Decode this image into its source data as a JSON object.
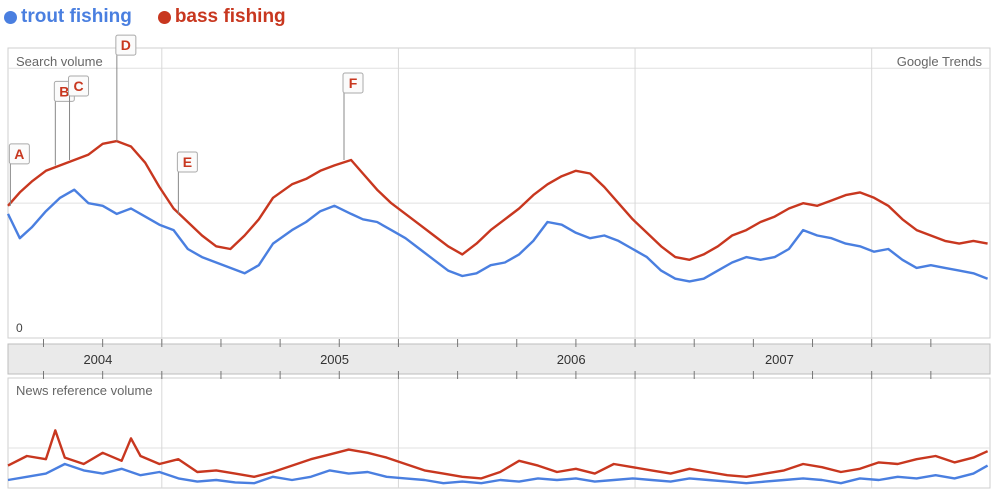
{
  "colors": {
    "trout": "#4a7fe0",
    "bass": "#c8371f"
  },
  "legend": {
    "trout_label": "trout fishing",
    "bass_label": "bass fishing"
  },
  "search_panel": {
    "title": "Search volume",
    "brand": "Google Trends",
    "zero_label": "0"
  },
  "news_panel": {
    "title": "News reference volume"
  },
  "chart_data": [
    {
      "type": "line",
      "title": "Search volume",
      "x_unit": "year",
      "x_range": [
        2003.5,
        2007.65
      ],
      "ylim": [
        0,
        100
      ],
      "x_tick_labels": [
        "2004",
        "2005",
        "2006",
        "2007"
      ],
      "y_tick_labels": [
        "0"
      ],
      "grid": true,
      "legend_position": "top-left",
      "series": [
        {
          "name": "trout fishing",
          "color": "#4a7fe0",
          "x": [
            2003.5,
            2003.55,
            2003.6,
            2003.66,
            2003.72,
            2003.78,
            2003.84,
            2003.9,
            2003.96,
            2004.02,
            2004.08,
            2004.14,
            2004.2,
            2004.26,
            2004.32,
            2004.38,
            2004.44,
            2004.5,
            2004.56,
            2004.62,
            2004.7,
            2004.76,
            2004.82,
            2004.88,
            2004.95,
            2005.0,
            2005.06,
            2005.12,
            2005.18,
            2005.24,
            2005.3,
            2005.36,
            2005.42,
            2005.48,
            2005.54,
            2005.6,
            2005.66,
            2005.72,
            2005.78,
            2005.84,
            2005.9,
            2005.96,
            2006.02,
            2006.08,
            2006.14,
            2006.2,
            2006.26,
            2006.32,
            2006.38,
            2006.44,
            2006.5,
            2006.56,
            2006.62,
            2006.68,
            2006.74,
            2006.8,
            2006.86,
            2006.92,
            2006.98,
            2007.04,
            2007.1,
            2007.16,
            2007.22,
            2007.28,
            2007.34,
            2007.4,
            2007.46,
            2007.52,
            2007.58,
            2007.64
          ],
          "values": [
            46,
            37,
            41,
            47,
            52,
            55,
            50,
            49,
            46,
            48,
            45,
            42,
            40,
            33,
            30,
            28,
            26,
            24,
            27,
            35,
            40,
            43,
            47,
            49,
            46,
            44,
            43,
            40,
            37,
            33,
            29,
            25,
            23,
            24,
            27,
            28,
            31,
            36,
            43,
            42,
            39,
            37,
            38,
            36,
            33,
            30,
            25,
            22,
            21,
            22,
            25,
            28,
            30,
            29,
            30,
            33,
            40,
            38,
            37,
            35,
            34,
            32,
            33,
            29,
            26,
            27,
            26,
            25,
            24,
            22
          ]
        },
        {
          "name": "bass fishing",
          "color": "#c8371f",
          "x": [
            2003.5,
            2003.55,
            2003.6,
            2003.66,
            2003.72,
            2003.78,
            2003.84,
            2003.9,
            2003.96,
            2004.02,
            2004.08,
            2004.14,
            2004.2,
            2004.26,
            2004.32,
            2004.38,
            2004.44,
            2004.5,
            2004.56,
            2004.62,
            2004.7,
            2004.76,
            2004.82,
            2004.88,
            2004.95,
            2005.0,
            2005.06,
            2005.12,
            2005.18,
            2005.24,
            2005.3,
            2005.36,
            2005.42,
            2005.48,
            2005.54,
            2005.6,
            2005.66,
            2005.72,
            2005.78,
            2005.84,
            2005.9,
            2005.96,
            2006.02,
            2006.08,
            2006.14,
            2006.2,
            2006.26,
            2006.32,
            2006.38,
            2006.44,
            2006.5,
            2006.56,
            2006.62,
            2006.68,
            2006.74,
            2006.8,
            2006.86,
            2006.92,
            2006.98,
            2007.04,
            2007.1,
            2007.16,
            2007.22,
            2007.28,
            2007.34,
            2007.4,
            2007.46,
            2007.52,
            2007.58,
            2007.64
          ],
          "values": [
            49,
            54,
            58,
            62,
            64,
            66,
            68,
            72,
            73,
            71,
            65,
            56,
            48,
            43,
            38,
            34,
            33,
            38,
            44,
            52,
            57,
            59,
            62,
            64,
            66,
            61,
            55,
            50,
            46,
            42,
            38,
            34,
            31,
            35,
            40,
            44,
            48,
            53,
            57,
            60,
            62,
            61,
            56,
            50,
            44,
            39,
            34,
            30,
            29,
            31,
            34,
            38,
            40,
            43,
            45,
            48,
            50,
            49,
            51,
            53,
            54,
            52,
            49,
            44,
            40,
            38,
            36,
            35,
            36,
            35
          ]
        }
      ]
    },
    {
      "type": "line",
      "title": "News reference volume",
      "x_unit": "year",
      "x_range": [
        2003.5,
        2007.65
      ],
      "ylim": [
        0,
        100
      ],
      "series": [
        {
          "name": "trout fishing",
          "color": "#4a7fe0",
          "x": [
            2003.5,
            2003.58,
            2003.66,
            2003.74,
            2003.82,
            2003.9,
            2003.98,
            2004.06,
            2004.14,
            2004.22,
            2004.3,
            2004.38,
            2004.46,
            2004.54,
            2004.62,
            2004.7,
            2004.78,
            2004.86,
            2004.94,
            2005.02,
            2005.1,
            2005.18,
            2005.26,
            2005.34,
            2005.42,
            2005.5,
            2005.58,
            2005.66,
            2005.74,
            2005.82,
            2005.9,
            2005.98,
            2006.06,
            2006.14,
            2006.22,
            2006.3,
            2006.38,
            2006.46,
            2006.54,
            2006.62,
            2006.7,
            2006.78,
            2006.86,
            2006.94,
            2007.02,
            2007.1,
            2007.18,
            2007.26,
            2007.34,
            2007.42,
            2007.5,
            2007.58,
            2007.64
          ],
          "values": [
            10,
            14,
            18,
            30,
            22,
            18,
            24,
            16,
            20,
            12,
            8,
            10,
            7,
            6,
            14,
            10,
            14,
            22,
            18,
            20,
            14,
            12,
            10,
            6,
            8,
            6,
            10,
            8,
            12,
            10,
            12,
            8,
            10,
            12,
            10,
            8,
            12,
            10,
            8,
            6,
            8,
            10,
            12,
            10,
            6,
            12,
            10,
            14,
            12,
            16,
            12,
            18,
            28
          ]
        },
        {
          "name": "bass fishing",
          "color": "#c8371f",
          "x": [
            2003.5,
            2003.58,
            2003.66,
            2003.7,
            2003.74,
            2003.82,
            2003.9,
            2003.98,
            2004.02,
            2004.06,
            2004.14,
            2004.22,
            2004.3,
            2004.38,
            2004.46,
            2004.54,
            2004.62,
            2004.7,
            2004.78,
            2004.86,
            2004.94,
            2005.02,
            2005.1,
            2005.18,
            2005.26,
            2005.34,
            2005.42,
            2005.5,
            2005.58,
            2005.66,
            2005.74,
            2005.82,
            2005.9,
            2005.98,
            2006.06,
            2006.14,
            2006.22,
            2006.3,
            2006.38,
            2006.46,
            2006.54,
            2006.62,
            2006.7,
            2006.78,
            2006.86,
            2006.94,
            2007.02,
            2007.1,
            2007.18,
            2007.26,
            2007.34,
            2007.42,
            2007.5,
            2007.58,
            2007.64
          ],
          "values": [
            28,
            40,
            36,
            72,
            38,
            30,
            44,
            34,
            62,
            40,
            30,
            36,
            20,
            22,
            18,
            14,
            20,
            28,
            36,
            42,
            48,
            44,
            38,
            30,
            22,
            18,
            14,
            12,
            20,
            34,
            28,
            20,
            24,
            18,
            30,
            26,
            22,
            18,
            24,
            20,
            16,
            14,
            18,
            22,
            30,
            26,
            20,
            24,
            32,
            30,
            36,
            40,
            32,
            38,
            46
          ]
        }
      ]
    }
  ],
  "annotations": [
    {
      "label": "A",
      "x": 2003.51,
      "y": 49
    },
    {
      "label": "B",
      "x": 2003.7,
      "y": 64
    },
    {
      "label": "C",
      "x": 2003.76,
      "y": 66
    },
    {
      "label": "D",
      "x": 2003.96,
      "y": 73
    },
    {
      "label": "E",
      "x": 2004.22,
      "y": 46
    },
    {
      "label": "F",
      "x": 2004.92,
      "y": 66
    }
  ]
}
